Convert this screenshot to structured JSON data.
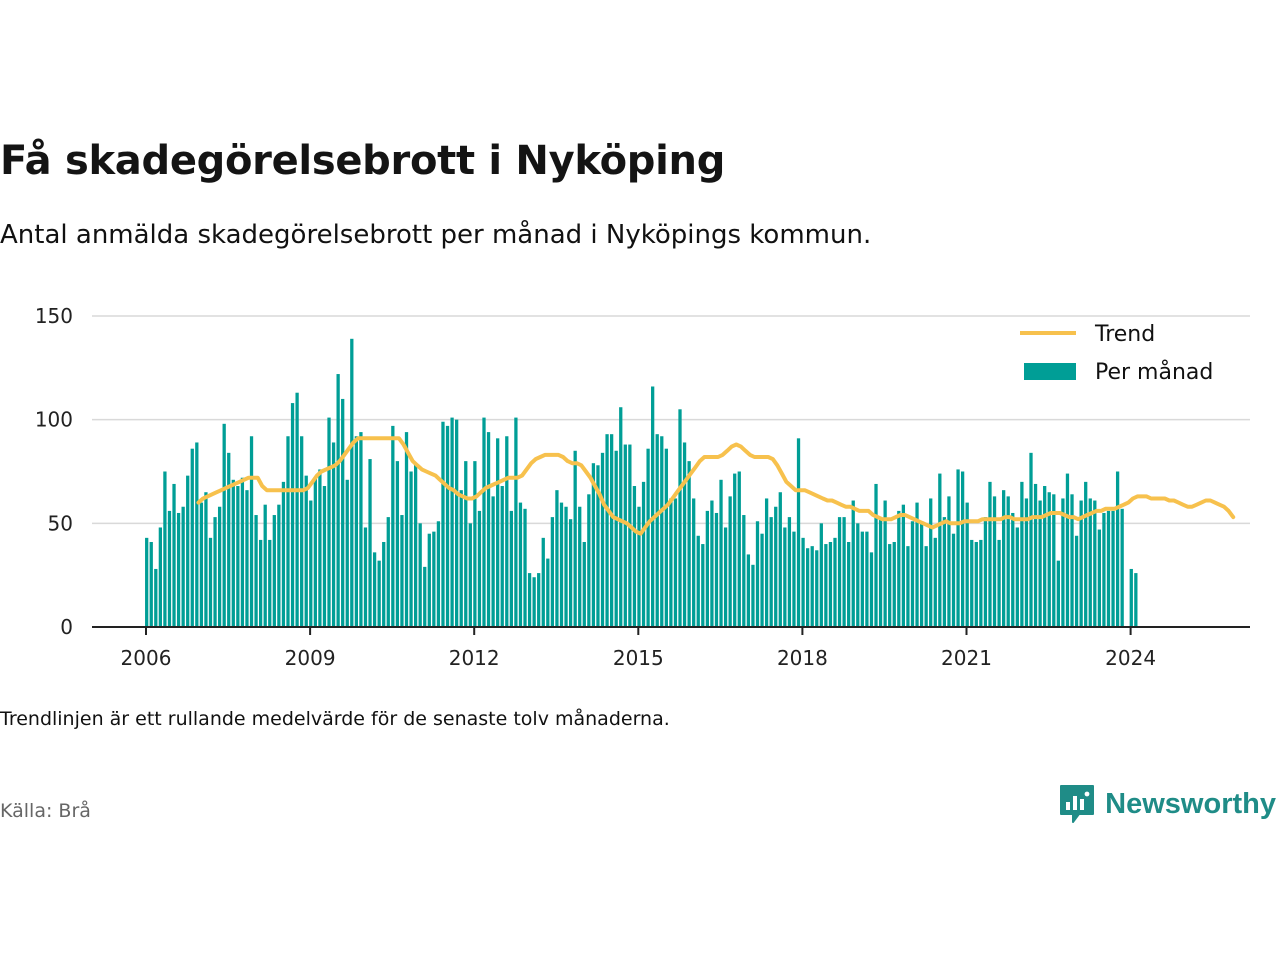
{
  "title": "Få skadegörelsebrott i Nyköping",
  "subtitle": "Antal anmälda skadegörelsebrott per månad i Nyköpings kommun.",
  "footnote": "Trendlinjen är ett rullande medelvärde för de senaste tolv månaderna.",
  "source": "Källa: Brå",
  "brand": "Newsworthy",
  "icons": {
    "brand_logo": "bar-chart-speech-bubble-icon"
  },
  "colors": {
    "bars": "#009e96",
    "trend": "#f7c14d",
    "grid": "#d9d9d9",
    "axis": "#222222",
    "brand": "#1f8c87"
  },
  "chart_data": {
    "type": "bar",
    "title": "Få skadegörelsebrott i Nyköping",
    "xlabel": "",
    "ylabel": "",
    "start": "2006-01",
    "ylim": [
      0,
      150
    ],
    "yticks": [
      0,
      50,
      100,
      150
    ],
    "xticks": [
      "2006",
      "2009",
      "2012",
      "2015",
      "2018",
      "2021",
      "2024"
    ],
    "grid": true,
    "legend": {
      "position": "top-right",
      "entries": [
        "Trend",
        "Per månad"
      ]
    },
    "series": [
      {
        "name": "Per månad",
        "kind": "bar",
        "values": [
          43,
          41,
          28,
          48,
          75,
          56,
          69,
          55,
          58,
          73,
          86,
          89,
          60,
          65,
          43,
          53,
          58,
          98,
          84,
          71,
          68,
          72,
          66,
          92,
          54,
          42,
          59,
          42,
          54,
          59,
          70,
          92,
          108,
          113,
          92,
          73,
          61,
          72,
          76,
          68,
          101,
          89,
          122,
          110,
          71,
          139,
          92,
          94,
          48,
          81,
          36,
          32,
          41,
          53,
          97,
          80,
          54,
          94,
          75,
          79,
          50,
          29,
          45,
          46,
          51,
          99,
          97,
          101,
          100,
          66,
          80,
          50,
          80,
          56,
          101,
          94,
          63,
          91,
          68,
          92,
          56,
          101,
          60,
          57,
          26,
          24,
          26,
          43,
          33,
          53,
          66,
          60,
          58,
          52,
          85,
          58,
          41,
          64,
          79,
          78,
          84,
          93,
          93,
          85,
          106,
          88,
          88,
          68,
          58,
          70,
          86,
          116,
          93,
          92,
          86,
          62,
          62,
          105,
          89,
          80,
          62,
          44,
          40,
          56,
          61,
          55,
          71,
          48,
          63,
          74,
          75,
          54,
          35,
          30,
          51,
          45,
          62,
          53,
          58,
          65,
          48,
          53,
          46,
          91,
          43,
          38,
          39,
          37,
          50,
          40,
          41,
          43,
          53,
          53,
          41,
          61,
          50,
          46,
          46,
          36,
          69,
          53,
          61,
          40,
          41,
          56,
          59,
          39,
          51,
          60,
          51,
          39,
          62,
          43,
          74,
          53,
          63,
          45,
          76,
          75,
          60,
          42,
          41,
          42,
          53,
          70,
          63,
          42,
          66,
          63,
          55,
          48,
          70,
          62,
          84,
          69,
          61,
          68,
          65,
          64,
          32,
          62,
          74,
          64,
          44,
          61,
          70,
          62,
          61,
          47,
          55,
          56,
          56,
          75,
          57,
          0,
          28,
          26
        ]
      },
      {
        "name": "Trend",
        "kind": "line",
        "start_index": 11,
        "values": [
          60,
          62,
          63,
          64,
          65,
          66,
          67,
          68,
          69,
          70,
          71,
          72,
          72,
          72,
          68,
          66,
          66,
          66,
          66,
          66,
          66,
          66,
          66,
          66,
          67,
          70,
          73,
          75,
          76,
          77,
          78,
          80,
          83,
          86,
          89,
          91,
          91,
          91,
          91,
          91,
          91,
          91,
          91,
          91,
          91,
          88,
          84,
          80,
          78,
          76,
          75,
          74,
          73,
          71,
          69,
          67,
          66,
          64,
          63,
          62,
          62,
          63,
          65,
          67,
          68,
          69,
          70,
          71,
          72,
          72,
          72,
          73,
          76,
          79,
          81,
          82,
          83,
          83,
          83,
          83,
          82,
          80,
          79,
          79,
          78,
          75,
          72,
          68,
          64,
          59,
          56,
          53,
          52,
          51,
          50,
          48,
          46,
          45,
          48,
          51,
          53,
          55,
          57,
          59,
          62,
          65,
          68,
          71,
          74,
          77,
          80,
          82,
          82,
          82,
          82,
          83,
          85,
          87,
          88,
          87,
          85,
          83,
          82,
          82,
          82,
          82,
          81,
          78,
          74,
          70,
          68,
          66,
          66,
          66,
          65,
          64,
          63,
          62,
          61,
          61,
          60,
          59,
          58,
          58,
          57,
          56,
          56,
          56,
          54,
          53,
          52,
          52,
          52,
          53,
          54,
          54,
          53,
          52,
          51,
          50,
          49,
          48,
          49,
          50,
          51,
          50,
          50,
          50,
          51,
          51,
          51,
          51,
          52,
          52,
          52,
          52,
          52,
          53,
          53,
          52,
          52,
          52,
          52,
          53,
          53,
          53,
          54,
          55,
          55,
          55,
          54,
          53,
          53,
          52,
          53,
          54,
          55,
          56,
          56,
          57,
          57,
          57,
          58,
          59,
          60,
          62,
          63,
          63,
          63,
          62,
          62,
          62,
          62,
          61,
          61,
          60,
          59,
          58,
          58,
          59,
          60,
          61,
          61,
          60,
          59,
          58,
          56,
          53
        ]
      }
    ]
  }
}
